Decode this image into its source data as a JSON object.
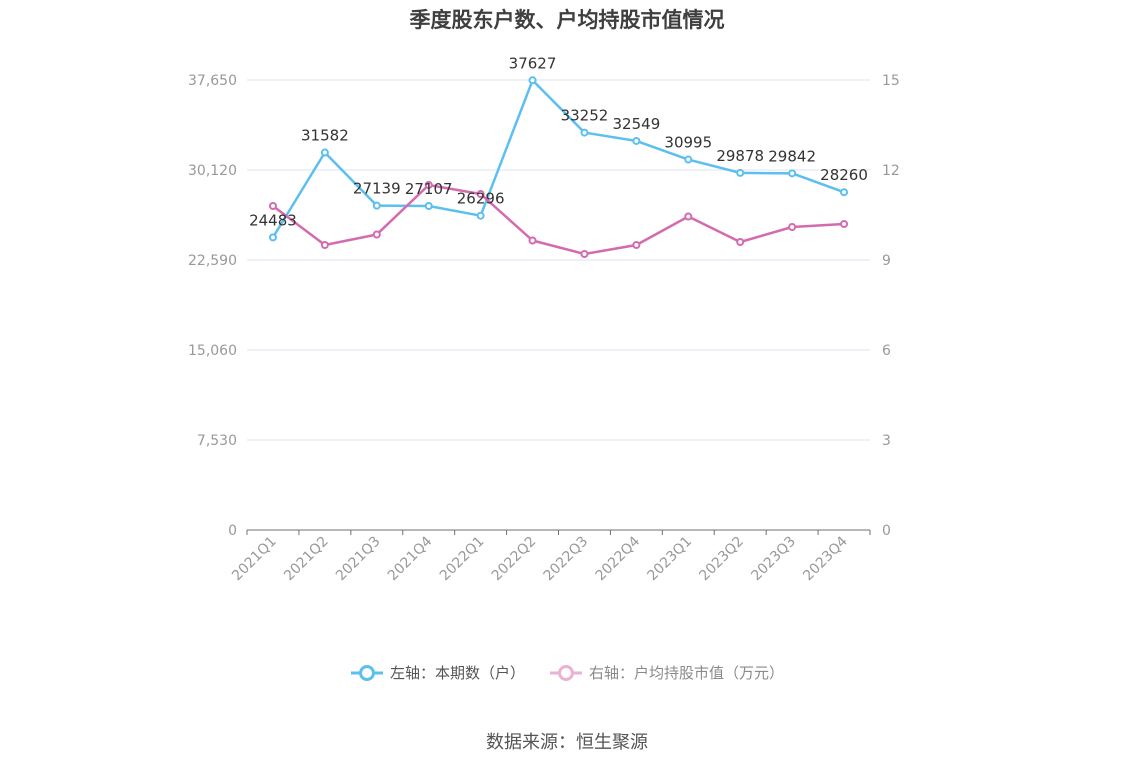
{
  "title": "季度股东户数、户均持股市值情况",
  "source": "数据来源：恒生聚源",
  "legend": {
    "left": "左轴：本期数（户）",
    "right": "右轴：户均持股市值（万元）"
  },
  "colors": {
    "left_series": "#5bbfef",
    "right_series": "#d46bae",
    "grid": "#dfe3f0",
    "axis": "#6e7079",
    "tick_label": "#999999"
  },
  "chart_data": {
    "type": "line",
    "title": "季度股东户数、户均持股市值情况",
    "categories": [
      "2021Q1",
      "2021Q2",
      "2021Q3",
      "2021Q4",
      "2022Q1",
      "2022Q2",
      "2022Q3",
      "2022Q4",
      "2023Q1",
      "2023Q2",
      "2023Q3",
      "2023Q4"
    ],
    "left_axis": {
      "ticks": [
        "0",
        "7,530",
        "15,060",
        "22,590",
        "30,120",
        "37,650"
      ],
      "ylim": [
        0,
        37650
      ]
    },
    "right_axis": {
      "ticks": [
        "0",
        "3",
        "6",
        "9",
        "12",
        "15"
      ],
      "ylim": [
        0,
        15
      ]
    },
    "grid": true,
    "legend_position": "bottom-center",
    "series": [
      {
        "name": "左轴：本期数（户）",
        "axis": "left",
        "values": [
          24483,
          31582,
          27139,
          27107,
          26296,
          37627,
          33252,
          32549,
          30995,
          29878,
          29842,
          28260
        ],
        "labels": [
          "24483",
          "31582",
          "27139",
          "27107",
          "26296",
          "37627",
          "33252",
          "32549",
          "30995",
          "29878",
          "29842",
          "28260"
        ]
      },
      {
        "name": "右轴：户均持股市值（万元）",
        "axis": "right",
        "values": [
          10.8,
          9.5,
          9.85,
          11.5,
          11.2,
          9.65,
          9.2,
          9.5,
          10.45,
          9.6,
          10.1,
          10.2
        ]
      }
    ]
  }
}
